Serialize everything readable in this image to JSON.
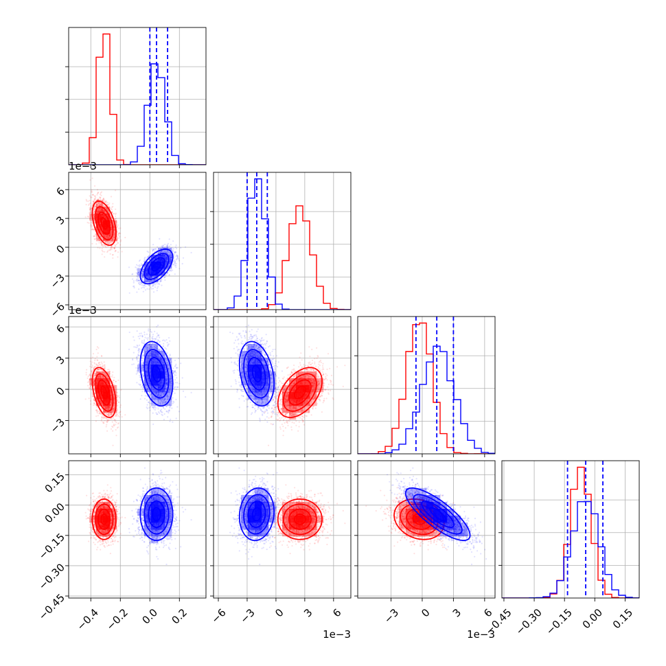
{
  "chart_data": {
    "type": "corner",
    "n_params": 4,
    "grid": true,
    "series": [
      {
        "color": "#ff0000"
      },
      {
        "color": "#0000ff"
      }
    ],
    "params": [
      {
        "range": [
          -0.55,
          0.38
        ],
        "ticks": [
          -0.4,
          -0.2,
          0.0,
          0.2
        ],
        "tick_labels": [
          "−0.4",
          "−0.2",
          "0.0",
          "0.2"
        ],
        "offset_text": ""
      },
      {
        "range": [
          -6.5,
          7.8
        ],
        "ticks": [
          -6,
          -3,
          0,
          3,
          6
        ],
        "tick_labels": [
          "−6",
          "−3",
          "0",
          "3",
          "6"
        ],
        "offset_text": "1e−3"
      },
      {
        "range": [
          -6.2,
          7.0
        ],
        "ticks": [
          -3,
          0,
          3,
          6
        ],
        "tick_labels": [
          "−3",
          "0",
          "3",
          "6"
        ],
        "offset_text": "1e−3"
      },
      {
        "range": [
          -0.46,
          0.22
        ],
        "ticks": [
          -0.45,
          -0.3,
          -0.15,
          0.0,
          0.15
        ],
        "tick_labels": [
          "−0.45",
          "−0.30",
          "−0.15",
          "0.00",
          "0.15"
        ],
        "offset_text": ""
      }
    ],
    "posteriors": [
      {
        "mean": [
          -0.31,
          2.5,
          -0.3,
          -0.07
        ],
        "sd": [
          0.04,
          1.15,
          1.2,
          0.05
        ]
      },
      {
        "mean": [
          0.045,
          -2.0,
          1.5,
          -0.045
        ],
        "sd": [
          0.055,
          0.9,
          1.55,
          0.065
        ]
      }
    ],
    "correlations": [
      {
        "pairs": [
          [
            0,
            1,
            -0.45
          ],
          [
            0,
            2,
            -0.45
          ],
          [
            1,
            2,
            0.45
          ],
          [
            2,
            3,
            -0.2
          ]
        ]
      },
      {
        "pairs": [
          [
            0,
            1,
            0.55
          ],
          [
            0,
            2,
            -0.3
          ],
          [
            1,
            2,
            -0.3
          ],
          [
            2,
            3,
            -0.8
          ],
          [
            1,
            3,
            0.1
          ]
        ]
      }
    ],
    "quantile_lines": {
      "color": "#0000ff",
      "style": "dashed",
      "values": [
        [
          0.0,
          0.045,
          0.12
        ],
        [
          -3.0,
          -2.0,
          -0.9
        ],
        [
          -0.6,
          1.4,
          3.0
        ],
        [
          -0.135,
          -0.045,
          0.04
        ]
      ]
    }
  }
}
